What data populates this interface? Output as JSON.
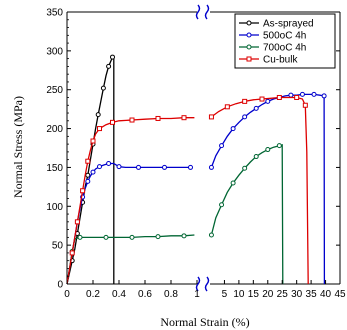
{
  "chart_data": {
    "type": "line",
    "title": "",
    "xlabel": "Normal Strain (%)",
    "ylabel": "Normal Stress (MPa)",
    "ylim": [
      0,
      350
    ],
    "y_ticks": [
      0,
      50,
      100,
      150,
      200,
      250,
      300,
      350
    ],
    "x_left_segment": {
      "range": [
        0,
        1
      ],
      "ticks": [
        0,
        0.2,
        0.4,
        0.6,
        0.8,
        1
      ],
      "tick_labels": [
        "0",
        "0.2",
        "0.4",
        "0.6",
        "0.8",
        "1"
      ]
    },
    "x_right_segment": {
      "range": [
        0,
        45
      ],
      "ticks": [
        5,
        10,
        15,
        20,
        25,
        30,
        35,
        40,
        45
      ],
      "tick_labels": [
        "5",
        "10",
        "15",
        "20",
        "25",
        "30",
        "35",
        "40",
        "45"
      ]
    },
    "axis_break": true,
    "grid": false,
    "legend_position": "top-right",
    "series": [
      {
        "name": "As-sprayed",
        "color": "#000000",
        "marker": "circle",
        "left": [
          [
            0,
            0
          ],
          [
            0.02,
            15
          ],
          [
            0.04,
            30
          ],
          [
            0.06,
            45
          ],
          [
            0.08,
            65
          ],
          [
            0.1,
            85
          ],
          [
            0.12,
            105
          ],
          [
            0.14,
            125
          ],
          [
            0.16,
            140
          ],
          [
            0.18,
            160
          ],
          [
            0.2,
            180
          ],
          [
            0.22,
            200
          ],
          [
            0.24,
            218
          ],
          [
            0.26,
            235
          ],
          [
            0.28,
            252
          ],
          [
            0.3,
            268
          ],
          [
            0.32,
            280
          ],
          [
            0.34,
            288
          ],
          [
            0.35,
            292
          ],
          [
            0.36,
            290
          ],
          [
            0.36,
            0
          ]
        ],
        "right": []
      },
      {
        "name": "500oC 4h",
        "color": "#0000cc",
        "marker": "circle",
        "left": [
          [
            0,
            0
          ],
          [
            0.02,
            20
          ],
          [
            0.04,
            40
          ],
          [
            0.06,
            60
          ],
          [
            0.08,
            80
          ],
          [
            0.1,
            97
          ],
          [
            0.12,
            112
          ],
          [
            0.14,
            123
          ],
          [
            0.16,
            132
          ],
          [
            0.18,
            139
          ],
          [
            0.2,
            144
          ],
          [
            0.22,
            148
          ],
          [
            0.25,
            151
          ],
          [
            0.28,
            153
          ],
          [
            0.32,
            155
          ],
          [
            0.36,
            155
          ],
          [
            0.4,
            151
          ],
          [
            0.45,
            150
          ],
          [
            0.55,
            150
          ],
          [
            0.65,
            150
          ],
          [
            0.75,
            150
          ],
          [
            0.85,
            150
          ],
          [
            0.95,
            150
          ]
        ],
        "right": [
          [
            0.5,
            150
          ],
          [
            2,
            165
          ],
          [
            4,
            178
          ],
          [
            6,
            190
          ],
          [
            8,
            200
          ],
          [
            10,
            208
          ],
          [
            12,
            215
          ],
          [
            14,
            221
          ],
          [
            16,
            226
          ],
          [
            18,
            231
          ],
          [
            20,
            235
          ],
          [
            22,
            238
          ],
          [
            24,
            240
          ],
          [
            26,
            242
          ],
          [
            28,
            243
          ],
          [
            30,
            243
          ],
          [
            32,
            244
          ],
          [
            34,
            244
          ],
          [
            36,
            244
          ],
          [
            38,
            243
          ],
          [
            39.5,
            242
          ],
          [
            39.6,
            0
          ]
        ]
      },
      {
        "name": "700oC 4h",
        "color": "#006633",
        "marker": "circle",
        "left": [
          [
            0,
            0
          ],
          [
            0.02,
            20
          ],
          [
            0.04,
            42
          ],
          [
            0.06,
            58
          ],
          [
            0.1,
            60
          ],
          [
            0.2,
            60
          ],
          [
            0.3,
            60
          ],
          [
            0.4,
            60
          ],
          [
            0.5,
            60
          ],
          [
            0.6,
            61
          ],
          [
            0.7,
            61
          ],
          [
            0.8,
            62
          ],
          [
            0.9,
            62
          ],
          [
            0.98,
            63
          ]
        ],
        "right": [
          [
            0.5,
            63
          ],
          [
            2,
            85
          ],
          [
            4,
            102
          ],
          [
            6,
            118
          ],
          [
            8,
            130
          ],
          [
            10,
            140
          ],
          [
            12,
            149
          ],
          [
            14,
            157
          ],
          [
            16,
            164
          ],
          [
            18,
            169
          ],
          [
            20,
            173
          ],
          [
            22,
            176
          ],
          [
            24,
            178
          ],
          [
            25,
            179
          ],
          [
            25.2,
            0
          ]
        ]
      },
      {
        "name": "Cu-bulk",
        "color": "#dd0000",
        "marker": "square",
        "left": [
          [
            0,
            0
          ],
          [
            0.02,
            20
          ],
          [
            0.04,
            40
          ],
          [
            0.06,
            60
          ],
          [
            0.08,
            80
          ],
          [
            0.1,
            100
          ],
          [
            0.12,
            120
          ],
          [
            0.14,
            140
          ],
          [
            0.16,
            158
          ],
          [
            0.18,
            172
          ],
          [
            0.2,
            184
          ],
          [
            0.22,
            193
          ],
          [
            0.25,
            200
          ],
          [
            0.3,
            205
          ],
          [
            0.35,
            208
          ],
          [
            0.4,
            210
          ],
          [
            0.5,
            211
          ],
          [
            0.6,
            212
          ],
          [
            0.7,
            213
          ],
          [
            0.8,
            213
          ],
          [
            0.9,
            214
          ],
          [
            0.98,
            214
          ]
        ],
        "right": [
          [
            0.5,
            215
          ],
          [
            3,
            222
          ],
          [
            6,
            228
          ],
          [
            9,
            232
          ],
          [
            12,
            235
          ],
          [
            15,
            237
          ],
          [
            18,
            238
          ],
          [
            21,
            239
          ],
          [
            24,
            240
          ],
          [
            27,
            240
          ],
          [
            30,
            240
          ],
          [
            32,
            238
          ],
          [
            33,
            230
          ],
          [
            33.5,
            170
          ],
          [
            34,
            0
          ]
        ]
      }
    ]
  }
}
